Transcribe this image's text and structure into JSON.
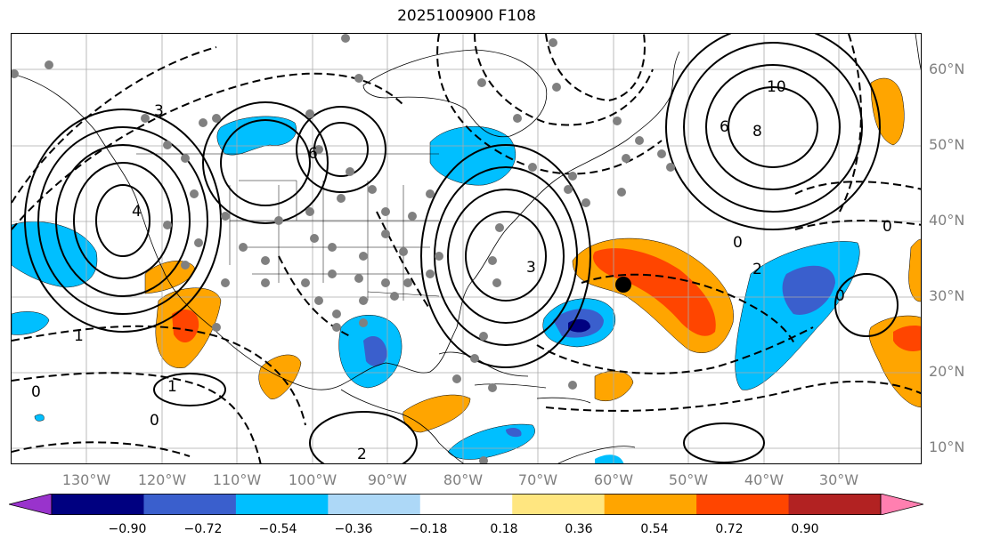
{
  "title": "2025100900 F108",
  "lat_labels": [
    "60°N",
    "50°N",
    "40°N",
    "30°N",
    "20°N",
    "10°N"
  ],
  "lon_labels": [
    "130°W",
    "120°W",
    "110°W",
    "100°W",
    "90°W",
    "80°W",
    "70°W",
    "60°W",
    "50°W",
    "40°W",
    "30°W"
  ],
  "colorbar": {
    "ticks": [
      "−0.90",
      "−0.72",
      "−0.54",
      "−0.36",
      "−0.18",
      "0.18",
      "0.36",
      "0.54",
      "0.72",
      "0.90"
    ],
    "colors": [
      "#9933cc",
      "#000080",
      "#3a5fcd",
      "#00bfff",
      "#add8f7",
      "#ffffff",
      "#ffe680",
      "#ffa500",
      "#ff4500",
      "#b22222",
      "#ff7fb0"
    ]
  },
  "contour_labels": {
    "high_nw": "3",
    "high_w": "4",
    "low_ne_center": "10",
    "low_ne_ring": "8",
    "ring_ne_6": "6",
    "ring_glakes": "6",
    "east_coast": "3",
    "atl_0": "0",
    "atl_neg2": "2",
    "south_1": "1",
    "south_0": "0",
    "south_2": "2",
    "tropic_0": "0",
    "far_e_0": "0",
    "far_se_0": "0",
    "neg1": "1"
  },
  "marker": "black-dot"
}
